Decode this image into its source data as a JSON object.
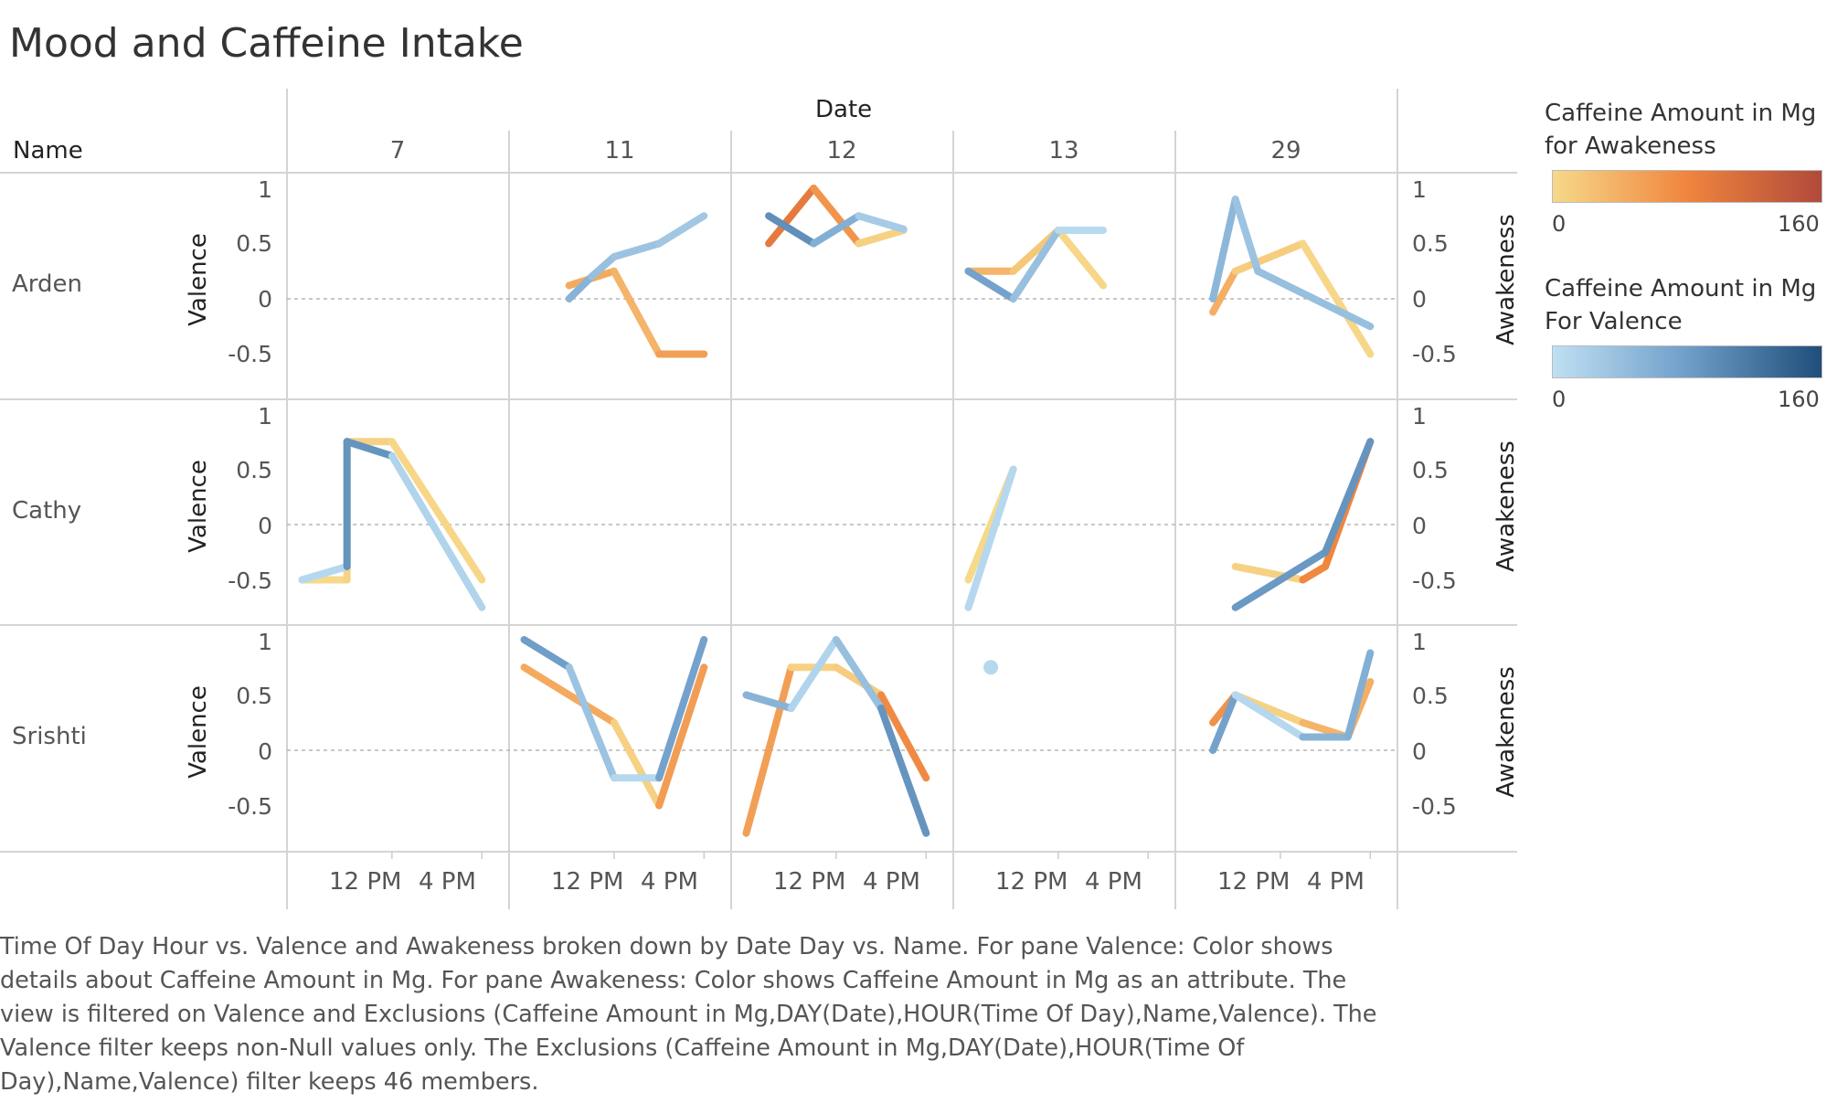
{
  "title": "Mood and Caffeine Intake",
  "header": {
    "columns_title": "Date",
    "rows_title": "Name"
  },
  "columns": [
    "7",
    "11",
    "12",
    "13",
    "29"
  ],
  "rows": [
    "Arden",
    "Cathy",
    "Srishti"
  ],
  "axis": {
    "left_title": "Valence",
    "right_title": "Awakeness",
    "left_ticks": [
      "1",
      "0.5",
      "0",
      "-0.5"
    ],
    "right_ticks": [
      "1",
      "0.5",
      "0",
      "-0.5"
    ],
    "x_ticks": [
      "12 PM",
      "4 PM"
    ]
  },
  "legend": {
    "awakeness_title": "Caffeine Amount in Mg for Awakeness",
    "awakeness_min": "0",
    "awakeness_max": "160",
    "valence_title": "Caffeine Amount in Mg For Valence",
    "valence_min": "0",
    "valence_max": "160",
    "colors": {
      "awakeness": [
        "#f7d98a",
        "#f0853e",
        "#b04a3a"
      ],
      "valence": [
        "#bfe0f3",
        "#6f9ec9",
        "#1f4e7a"
      ]
    }
  },
  "caption": "Time Of Day Hour vs. Valence and Awakeness broken down by Date Day vs. Name.  For pane Valence:  Color shows details about Caffeine Amount in Mg.  For pane Awakeness:  Color shows Caffeine Amount in Mg as an attribute. The view is filtered on Valence and Exclusions (Caffeine Amount in Mg,DAY(Date),HOUR(Time Of Day),Name,Valence). The Valence filter keeps non-Null values only. The Exclusions (Caffeine Amount in Mg,DAY(Date),HOUR(Time Of Day),Name,Valence) filter keeps 46 members.",
  "chart_data": {
    "type": "line",
    "title": "Mood and Caffeine Intake",
    "xlabel": "Time Of Day Hour",
    "ylabel_left": "Valence",
    "ylabel_right": "Awakeness",
    "ylim": [
      -0.8,
      1.1
    ],
    "grid": false,
    "legend_position": "right",
    "panels": [
      {
        "name": "Arden",
        "date": "11",
        "valence": [
          {
            "hour": 10,
            "y": 0,
            "mg": 60
          },
          {
            "hour": 11,
            "y": 0.2,
            "mg": 50
          },
          {
            "hour": 12,
            "y": 0.38,
            "mg": 30
          },
          {
            "hour": 14,
            "y": 0.5,
            "mg": 40
          },
          {
            "hour": 16,
            "y": 0.75,
            "mg": 20
          }
        ],
        "awakeness": [
          {
            "hour": 10,
            "y": 0.12,
            "mg": 80
          },
          {
            "hour": 12,
            "y": 0.25,
            "mg": 10
          },
          {
            "hour": 14,
            "y": -0.5,
            "mg": 60
          },
          {
            "hour": 16,
            "y": -0.5,
            "mg": 50
          }
        ]
      },
      {
        "name": "Arden",
        "date": "12",
        "valence": [
          {
            "hour": 9,
            "y": 0.75,
            "mg": 100
          },
          {
            "hour": 11,
            "y": 0.5,
            "mg": 90
          },
          {
            "hour": 13,
            "y": 0.75,
            "mg": 30
          },
          {
            "hour": 15,
            "y": 0.63,
            "mg": 20
          }
        ],
        "awakeness": [
          {
            "hour": 9,
            "y": 0.5,
            "mg": 70
          },
          {
            "hour": 11,
            "y": 1.0,
            "mg": 120
          },
          {
            "hour": 13,
            "y": 0.5,
            "mg": 10
          },
          {
            "hour": 15,
            "y": 0.62,
            "mg": 5
          }
        ]
      },
      {
        "name": "Arden",
        "date": "13",
        "valence": [
          {
            "hour": 8,
            "y": 0.25,
            "mg": 80
          },
          {
            "hour": 10,
            "y": 0,
            "mg": 70
          },
          {
            "hour": 12,
            "y": 0.62,
            "mg": 10
          },
          {
            "hour": 14,
            "y": 0.62,
            "mg": 5
          }
        ],
        "awakeness": [
          {
            "hour": 8,
            "y": 0.25,
            "mg": 40
          },
          {
            "hour": 10,
            "y": 0.25,
            "mg": 30
          },
          {
            "hour": 12,
            "y": 0.62,
            "mg": 5
          },
          {
            "hour": 14,
            "y": 0.12,
            "mg": 0
          }
        ]
      },
      {
        "name": "Arden",
        "date": "29",
        "valence": [
          {
            "hour": 9,
            "y": 0,
            "mg": 90
          },
          {
            "hour": 10,
            "y": 0.9,
            "mg": 10
          },
          {
            "hour": 11,
            "y": 0.25,
            "mg": 60
          },
          {
            "hour": 16,
            "y": -0.25,
            "mg": 20
          }
        ],
        "awakeness": [
          {
            "hour": 9,
            "y": -0.12,
            "mg": 60
          },
          {
            "hour": 10,
            "y": 0.25,
            "mg": 20
          },
          {
            "hour": 13,
            "y": 0.5,
            "mg": 5
          },
          {
            "hour": 16,
            "y": -0.5,
            "mg": 0
          }
        ]
      },
      {
        "name": "Cathy",
        "date": "7",
        "valence": [
          {
            "hour": 8,
            "y": -0.5,
            "mg": 0
          },
          {
            "hour": 10,
            "y": -0.38,
            "mg": 20
          },
          {
            "hour": 10,
            "y": 0.75,
            "mg": 160
          },
          {
            "hour": 12,
            "y": 0.62,
            "mg": 20
          },
          {
            "hour": 16,
            "y": -0.75,
            "mg": 10
          }
        ],
        "awakeness": [
          {
            "hour": 8,
            "y": -0.5,
            "mg": 0
          },
          {
            "hour": 10,
            "y": -0.5,
            "mg": 0
          },
          {
            "hour": 10,
            "y": 0.75,
            "mg": 10
          },
          {
            "hour": 12,
            "y": 0.75,
            "mg": 5
          },
          {
            "hour": 16,
            "y": -0.5,
            "mg": 0
          }
        ]
      },
      {
        "name": "Cathy",
        "date": "13",
        "valence": [
          {
            "hour": 8,
            "y": -0.75,
            "mg": 10
          },
          {
            "hour": 10,
            "y": 0.5,
            "mg": 10
          }
        ],
        "awakeness": [
          {
            "hour": 8,
            "y": -0.5,
            "mg": 0
          },
          {
            "hour": 10,
            "y": 0.5,
            "mg": 0
          }
        ]
      },
      {
        "name": "Cathy",
        "date": "29",
        "valence": [
          {
            "hour": 10,
            "y": -0.75,
            "mg": 10
          },
          {
            "hour": 14,
            "y": -0.25,
            "mg": 160
          },
          {
            "hour": 16,
            "y": 0.75,
            "mg": 20
          }
        ],
        "awakeness": [
          {
            "hour": 10,
            "y": -0.38,
            "mg": 10
          },
          {
            "hour": 13,
            "y": -0.5,
            "mg": 5
          },
          {
            "hour": 14,
            "y": -0.38,
            "mg": 150
          },
          {
            "hour": 16,
            "y": 0.75,
            "mg": 10
          }
        ]
      },
      {
        "name": "Srishti",
        "date": "11",
        "valence": [
          {
            "hour": 8,
            "y": 1.0,
            "mg": 100
          },
          {
            "hour": 10,
            "y": 0.75,
            "mg": 60
          },
          {
            "hour": 12,
            "y": -0.25,
            "mg": 10
          },
          {
            "hour": 14,
            "y": -0.25,
            "mg": 10
          },
          {
            "hour": 16,
            "y": 1.0,
            "mg": 140
          }
        ],
        "awakeness": [
          {
            "hour": 8,
            "y": 0.75,
            "mg": 80
          },
          {
            "hour": 12,
            "y": 0.25,
            "mg": 10
          },
          {
            "hour": 14,
            "y": -0.5,
            "mg": 5
          },
          {
            "hour": 16,
            "y": 0.75,
            "mg": 110
          }
        ]
      },
      {
        "name": "Srishti",
        "date": "12",
        "valence": [
          {
            "hour": 8,
            "y": 0.5,
            "mg": 100
          },
          {
            "hour": 10,
            "y": 0.38,
            "mg": 10
          },
          {
            "hour": 12,
            "y": 1.0,
            "mg": 20
          },
          {
            "hour": 14,
            "y": 0.38,
            "mg": 60
          },
          {
            "hour": 16,
            "y": -0.75,
            "mg": 120
          }
        ],
        "awakeness": [
          {
            "hour": 8,
            "y": -0.75,
            "mg": 100
          },
          {
            "hour": 10,
            "y": 0.75,
            "mg": 10
          },
          {
            "hour": 12,
            "y": 0.75,
            "mg": 5
          },
          {
            "hour": 14,
            "y": 0.5,
            "mg": 20
          },
          {
            "hour": 16,
            "y": -0.25,
            "mg": 130
          }
        ]
      },
      {
        "name": "Srishti",
        "date": "13",
        "valence": [
          {
            "hour": 9,
            "y": 0.75,
            "mg": 10
          }
        ],
        "awakeness": []
      },
      {
        "name": "Srishti",
        "date": "29",
        "valence": [
          {
            "hour": 9,
            "y": 0,
            "mg": 140
          },
          {
            "hour": 10,
            "y": 0.5,
            "mg": 10
          },
          {
            "hour": 13,
            "y": 0.12,
            "mg": 10
          },
          {
            "hour": 15,
            "y": 0.12,
            "mg": 100
          },
          {
            "hour": 16,
            "y": 0.88,
            "mg": 20
          }
        ],
        "awakeness": [
          {
            "hour": 9,
            "y": 0.25,
            "mg": 130
          },
          {
            "hour": 10,
            "y": 0.5,
            "mg": 5
          },
          {
            "hour": 13,
            "y": 0.25,
            "mg": 10
          },
          {
            "hour": 15,
            "y": 0.12,
            "mg": 60
          },
          {
            "hour": 16,
            "y": 0.62,
            "mg": 20
          }
        ]
      }
    ]
  }
}
